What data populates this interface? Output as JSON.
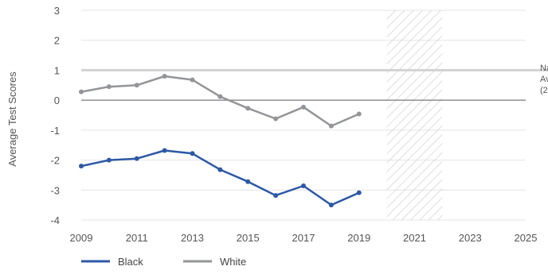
{
  "chart_data": {
    "type": "line",
    "title": "",
    "xlabel": "",
    "ylabel": "Average Test Scores",
    "x": [
      2009,
      2010,
      2011,
      2012,
      2013,
      2014,
      2015,
      2016,
      2017,
      2018,
      2019
    ],
    "series": [
      {
        "name": "Black",
        "color": "#2d58a6",
        "values": [
          -2.2,
          -2.0,
          -1.95,
          -1.68,
          -1.78,
          -2.32,
          -2.72,
          -3.18,
          -2.86,
          -3.5,
          -3.09
        ]
      },
      {
        "name": "White",
        "color": "#939598",
        "values": [
          0.28,
          0.45,
          0.5,
          0.8,
          0.68,
          0.12,
          -0.27,
          -0.62,
          -0.23,
          -0.86,
          -0.46
        ]
      }
    ],
    "xlim": [
      2009,
      2025
    ],
    "ylim": [
      -4,
      3
    ],
    "x_ticks": [
      "2009",
      "2011",
      "2013",
      "2015",
      "2017",
      "2019",
      "2021",
      "2023",
      "2025"
    ],
    "y_ticks": [
      "3",
      "2",
      "1",
      "0",
      "-1",
      "-2",
      "-3",
      "-4"
    ],
    "hatched_span": [
      2020,
      2022
    ],
    "reference_line": {
      "value": 1,
      "label_lines": [
        "Na",
        "Av",
        "(2"
      ]
    },
    "grid": true,
    "legend_position": "bottom-left"
  }
}
